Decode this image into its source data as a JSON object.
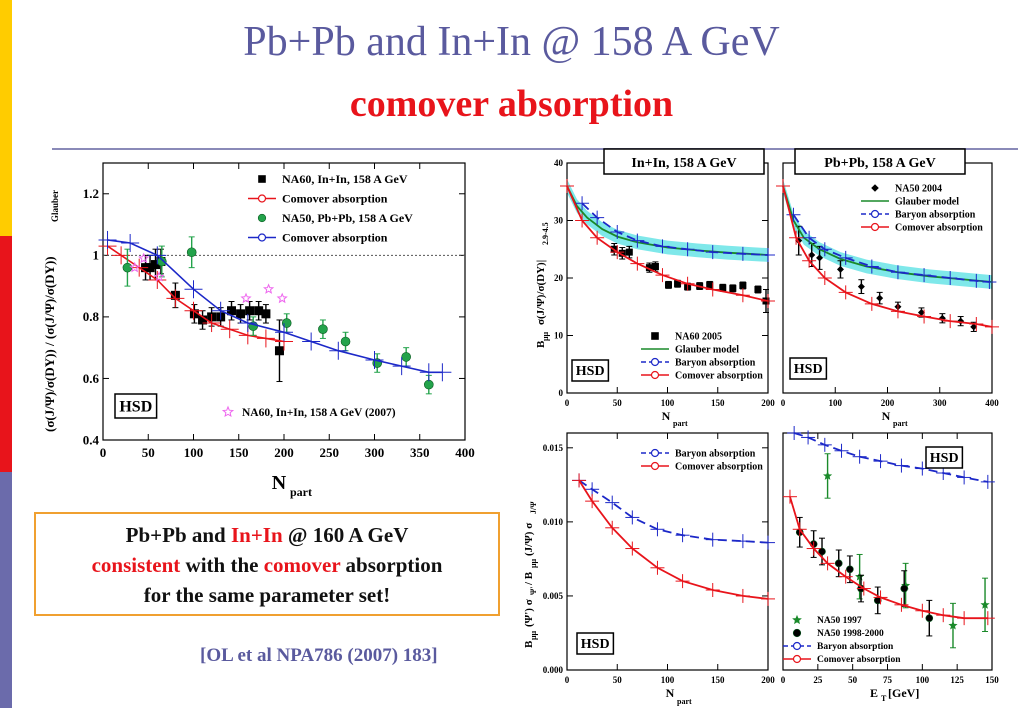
{
  "slide": {
    "title": "Pb+Pb and In+In @ 158 A GeV",
    "subtitle": "comover absorption",
    "accent_colors": [
      "#ffcc00",
      "#e8141b",
      "#6b6bab"
    ],
    "conclusion": {
      "line1_a": "Pb+Pb and ",
      "line1_b": "In+In",
      "line1_c": " @ 160 A GeV",
      "line2_a": "consistent",
      "line2_b": " with the ",
      "line2_c": "comover",
      "line2_d": "  absorption",
      "line3": "for the same  parameter set!"
    },
    "reference": "[OL et al NPA786 (2007) 183]"
  },
  "chart_data": [
    {
      "id": "main",
      "type": "scatter",
      "ylabel": "(σ(J/Ψ)/σ(DY)) / (σ(J/Ψ)/σ(DY))Glauber",
      "xlabel": "Npart",
      "xlim": [
        0,
        400
      ],
      "ylim": [
        0.4,
        1.3
      ],
      "xticks": [
        0,
        50,
        100,
        150,
        200,
        250,
        300,
        350,
        400
      ],
      "yticks": [
        0.4,
        0.6,
        0.8,
        1.0,
        1.2
      ],
      "box_label": "HSD",
      "legend": [
        "NA60, In+In,   158 A GeV",
        "Comover absorption",
        "NA50, Pb+Pb, 158 A GeV",
        "Comover absorption"
      ],
      "extra_label": "NA60, In+In, 158 A GeV (2007)",
      "reference_line": 1.0,
      "series": [
        {
          "name": "NA60, In+In,   158 A GeV",
          "marker": "square",
          "color": "#000000",
          "x": [
            47,
            52,
            58,
            64,
            80,
            101,
            110,
            120,
            130,
            142,
            152,
            162,
            172,
            180,
            195
          ],
          "y": [
            0.96,
            0.96,
            0.97,
            0.98,
            0.87,
            0.81,
            0.79,
            0.8,
            0.8,
            0.82,
            0.81,
            0.82,
            0.82,
            0.81,
            0.69
          ],
          "err": [
            0.04,
            0.04,
            0.05,
            0.04,
            0.04,
            0.03,
            0.03,
            0.03,
            0.03,
            0.03,
            0.03,
            0.03,
            0.03,
            0.03,
            0.1
          ]
        },
        {
          "name": "Comover absorption",
          "marker": "circle",
          "color": "#e8141b",
          "x": [
            5,
            20,
            40,
            60,
            80,
            100,
            120,
            140,
            160,
            180,
            200
          ],
          "y": [
            1.03,
            1.0,
            0.96,
            0.92,
            0.86,
            0.82,
            0.78,
            0.76,
            0.74,
            0.73,
            0.72
          ]
        },
        {
          "name": "NA50, Pb+Pb, 158 A GeV",
          "marker": "dot",
          "color": "#23a34b",
          "x": [
            27,
            65,
            98,
            166,
            203,
            243,
            268,
            303,
            335,
            360
          ],
          "y": [
            0.96,
            0.98,
            1.01,
            0.77,
            0.78,
            0.76,
            0.72,
            0.65,
            0.67,
            0.58
          ],
          "err": [
            0.06,
            0.05,
            0.05,
            0.03,
            0.03,
            0.03,
            0.03,
            0.03,
            0.03,
            0.03
          ]
        },
        {
          "name": "Comover absorption",
          "marker": "circle",
          "color": "#1c28c8",
          "x": [
            5,
            30,
            60,
            100,
            130,
            160,
            200,
            230,
            260,
            300,
            330,
            360,
            375
          ],
          "y": [
            1.05,
            1.04,
            1.0,
            0.89,
            0.82,
            0.78,
            0.75,
            0.72,
            0.69,
            0.66,
            0.64,
            0.62,
            0.62
          ]
        },
        {
          "name": "NA60, In+In, 158 A GeV (2007)",
          "marker": "star",
          "color": "#ee66ee",
          "x": [
            35,
            45,
            62,
            158,
            183,
            198
          ],
          "y": [
            0.96,
            0.99,
            0.93,
            0.86,
            0.89,
            0.86
          ]
        }
      ]
    },
    {
      "id": "inin",
      "type": "scatter",
      "ylabel": "Bμμ σ(J/Ψ)/σ(DY)|2.9-4.5",
      "xlabel": "Npart",
      "xlim": [
        0,
        200
      ],
      "ylim": [
        0,
        40
      ],
      "xticks": [
        0,
        50,
        100,
        150,
        200
      ],
      "yticks": [
        0,
        10,
        20,
        30,
        40
      ],
      "header": "In+In, 158 A GeV",
      "box_label": "HSD",
      "legend": [
        "NA60 2005",
        "Glauber model",
        "Baryon absorption",
        "Comover absorption"
      ],
      "series": [
        {
          "name": "NA60 2005",
          "marker": "square",
          "color": "#000000",
          "x": [
            47,
            55,
            62,
            82,
            88,
            101,
            110,
            120,
            132,
            142,
            155,
            165,
            175,
            190,
            198
          ],
          "y": [
            25,
            24.3,
            24.5,
            21.8,
            22,
            18.8,
            19,
            18.5,
            18.6,
            18.8,
            18.3,
            18.2,
            18.7,
            18,
            16
          ],
          "err": [
            1,
            1,
            1,
            0.8,
            0.8,
            0.6,
            0.6,
            0.6,
            0.6,
            0.6,
            0.6,
            0.6,
            0.6,
            0.6,
            2
          ]
        },
        {
          "name": "Glauber model",
          "marker": "none",
          "color": "#1a8a2a",
          "x": [
            0,
            10,
            20,
            35,
            50,
            70,
            100,
            130,
            160,
            200
          ],
          "y": [
            36,
            32.5,
            30.5,
            28.5,
            27.2,
            26.2,
            25.3,
            24.8,
            24.4,
            24
          ]
        },
        {
          "name": "Baryon absorption",
          "marker": "circle",
          "color": "#1c28c8",
          "x": [
            15,
            30,
            50,
            70,
            95,
            120,
            145,
            175,
            200
          ],
          "y": [
            33,
            30.5,
            28,
            26.5,
            25.5,
            25,
            24.5,
            24.2,
            24
          ]
        },
        {
          "name": "Comover absorption",
          "marker": "circle",
          "color": "#e8141b",
          "x": [
            0,
            15,
            30,
            50,
            70,
            95,
            120,
            145,
            175,
            200
          ],
          "y": [
            36,
            30,
            27,
            24.5,
            22.5,
            20.5,
            19,
            18,
            17,
            16
          ]
        }
      ]
    },
    {
      "id": "pbpb",
      "type": "scatter",
      "xlabel": "Npart",
      "xlim": [
        0,
        400
      ],
      "ylim": [
        0,
        40
      ],
      "xticks": [
        0,
        100,
        200,
        300,
        400
      ],
      "header": "Pb+Pb, 158 A GeV",
      "box_label": "HSD",
      "legend": [
        "NA50 2004",
        "Glauber model",
        "Baryon absorption",
        "Comover absorption"
      ],
      "series": [
        {
          "name": "NA50 2004",
          "marker": "diamond",
          "color": "#000000",
          "x": [
            30,
            55,
            70,
            110,
            150,
            185,
            220,
            265,
            305,
            340,
            365
          ],
          "y": [
            26.5,
            24,
            23.5,
            21.5,
            18.5,
            16.5,
            15,
            14,
            13,
            12.5,
            11.5
          ],
          "err": [
            2.5,
            2,
            2,
            1.5,
            1.2,
            1,
            0.8,
            0.8,
            0.8,
            0.8,
            0.8
          ]
        },
        {
          "name": "Glauber model",
          "marker": "none",
          "color": "#1a8a2a",
          "x": [
            0,
            20,
            40,
            70,
            110,
            160,
            220,
            280,
            340,
            400
          ],
          "y": [
            36,
            30,
            27,
            25,
            23.3,
            22,
            21,
            20.3,
            19.8,
            19.3
          ]
        },
        {
          "name": "Baryon absorption",
          "marker": "circle",
          "color": "#1c28c8",
          "x": [
            20,
            50,
            80,
            120,
            170,
            220,
            270,
            320,
            370,
            395
          ],
          "y": [
            31,
            27,
            25,
            23.5,
            22,
            21,
            20.5,
            20,
            19.5,
            19.3
          ]
        },
        {
          "name": "Comover absorption",
          "marker": "circle",
          "color": "#e8141b",
          "x": [
            0,
            25,
            50,
            80,
            120,
            170,
            220,
            270,
            320,
            370,
            400
          ],
          "y": [
            36,
            27,
            23,
            20,
            17.5,
            15.5,
            14.2,
            13.3,
            12.5,
            12,
            11.5
          ]
        }
      ]
    },
    {
      "id": "psiprime_npart",
      "type": "line",
      "ylabel": "Bμμ(Ψ') σΨ' / Bμμ(J/Ψ) σJ/Ψ",
      "xlabel": "Npart",
      "xlim": [
        0,
        200
      ],
      "ylim": [
        0,
        0.016
      ],
      "xticks": [
        0,
        50,
        100,
        150,
        200
      ],
      "yticks": [
        0.0,
        0.005,
        0.01,
        0.015
      ],
      "ytick_labels": [
        "0.000",
        "0.005",
        "0.010",
        "0.015"
      ],
      "box_label": "HSD",
      "legend": [
        "Baryon absorption",
        "Comover absorption"
      ],
      "series": [
        {
          "name": "Baryon absorption",
          "marker": "circle",
          "color": "#1c28c8",
          "x": [
            12,
            25,
            45,
            65,
            90,
            115,
            145,
            175,
            200
          ],
          "y": [
            0.0128,
            0.0122,
            0.0113,
            0.0103,
            0.0095,
            0.0091,
            0.0088,
            0.0087,
            0.0086
          ]
        },
        {
          "name": "Comover absorption",
          "marker": "circle",
          "color": "#e8141b",
          "x": [
            12,
            25,
            45,
            65,
            90,
            115,
            145,
            175,
            200
          ],
          "y": [
            0.0128,
            0.0114,
            0.0096,
            0.0082,
            0.0069,
            0.006,
            0.0054,
            0.005,
            0.0048
          ]
        }
      ]
    },
    {
      "id": "psiprime_et",
      "type": "scatter",
      "xlabel": "ET [GeV]",
      "xlim": [
        0,
        150
      ],
      "ylim": [
        0,
        0.016
      ],
      "xticks": [
        0,
        25,
        50,
        75,
        100,
        125,
        150
      ],
      "box_label": "HSD",
      "legend": [
        "NA50 1997",
        "NA50 1998-2000",
        "Baryon absorption",
        "Comover absorption"
      ],
      "series": [
        {
          "name": "NA50 1997",
          "marker": "star",
          "color": "#1a8a2a",
          "x": [
            32,
            55,
            88,
            122,
            145
          ],
          "y": [
            0.0131,
            0.0063,
            0.0057,
            0.003,
            0.0044
          ],
          "err": [
            0.0015,
            0.0015,
            0.0015,
            0.0015,
            0.0018
          ]
        },
        {
          "name": "NA50 1998-2000",
          "marker": "dot",
          "color": "#000000",
          "x": [
            12,
            22,
            28,
            40,
            48,
            56,
            68,
            87,
            105
          ],
          "y": [
            0.0093,
            0.0085,
            0.008,
            0.0072,
            0.0068,
            0.0055,
            0.0047,
            0.0055,
            0.0035
          ],
          "err": [
            0.001,
            0.0009,
            0.0009,
            0.0009,
            0.0009,
            0.0009,
            0.0009,
            0.0012,
            0.0012
          ]
        },
        {
          "name": "Baryon absorption",
          "marker": "circle",
          "color": "#1c28c8",
          "x": [
            8,
            18,
            30,
            42,
            55,
            70,
            85,
            100,
            115,
            130,
            147
          ],
          "y": [
            0.016,
            0.0157,
            0.0152,
            0.0148,
            0.0144,
            0.0141,
            0.0138,
            0.0136,
            0.0133,
            0.013,
            0.0127
          ]
        },
        {
          "name": "Comover absorption",
          "marker": "circle",
          "color": "#e8141b",
          "x": [
            5,
            12,
            22,
            32,
            45,
            58,
            70,
            85,
            100,
            115,
            130,
            147
          ],
          "y": [
            0.0117,
            0.0095,
            0.0082,
            0.0072,
            0.0063,
            0.0055,
            0.0049,
            0.0044,
            0.004,
            0.0037,
            0.0035,
            0.0035
          ]
        }
      ]
    }
  ]
}
